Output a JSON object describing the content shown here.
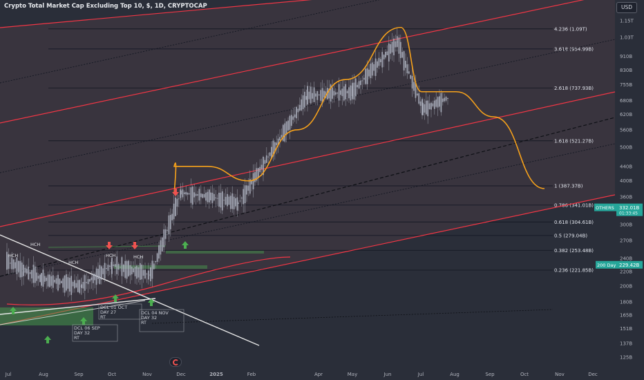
{
  "header": {
    "title": "Crypto Total Market Cap Excluding Top 10, $, 1D, CRYPTOCAP",
    "currency_button": "USD"
  },
  "colors": {
    "background": "#2a2e39",
    "pane_shade": "#463a44",
    "fib_line": "#131722",
    "channel_red": "#f23645",
    "dashed_line": "#131722",
    "projection": "#f7a21b",
    "candles": "#aeb3bf",
    "support_green": "#4caf50",
    "trend_white": "#e8e8e8",
    "signal_up": "#4caf50",
    "signal_down": "#ef5350",
    "others_badge": "#26a69a",
    "ma_badge": "#26a69a"
  },
  "chart_data": {
    "type": "line",
    "title": "Crypto Total Market Cap Excluding Top 10, $, 1D, CRYPTOCAP",
    "y_scale": "log",
    "ylim": [
      120,
      1250
    ],
    "y_ticks": [
      "1.15T",
      "1.03T",
      "910B",
      "830B",
      "755B",
      "680B",
      "620B",
      "560B",
      "500B",
      "440B",
      "400B",
      "360B",
      "330B",
      "300B",
      "270B",
      "240B",
      "220B",
      "200B",
      "180B",
      "165B",
      "151B",
      "137B",
      "125B"
    ],
    "x_ticks": [
      "Jul",
      "Aug",
      "Sep",
      "Oct",
      "Nov",
      "Dec",
      "2025",
      "Feb",
      "Apr",
      "May",
      "Jun",
      "Jul",
      "Aug",
      "Sep",
      "Oct",
      "Nov",
      "Dec"
    ],
    "fib_levels": [
      {
        "label": "4.236 (1.09T)",
        "value": 1090
      },
      {
        "label": "3.618 (954.99B)",
        "value": 955
      },
      {
        "label": "2.618 (737.93B)",
        "value": 738
      },
      {
        "label": "1.618 (521.27B)",
        "value": 521
      },
      {
        "label": "1 (387.37B)",
        "value": 387
      },
      {
        "label": "0.786 (341.01B)",
        "value": 341
      },
      {
        "label": "0.618 (304.61B)",
        "value": 305
      },
      {
        "label": "0.5 (279.04B)",
        "value": 279
      },
      {
        "label": "0.382 (253.48B)",
        "value": 253
      },
      {
        "label": "0.236 (221.85B)",
        "value": 222
      }
    ],
    "badges": [
      {
        "name": "OTHERS",
        "value": "332.01B",
        "sub": "01:33:45"
      },
      {
        "name": "200 Day",
        "value": "229.42B"
      }
    ],
    "series": [
      {
        "role": "price",
        "x": [
          "Jul",
          "Aug",
          "Sep",
          "Oct",
          "Nov",
          "Dec",
          "2025",
          "Feb",
          "Apr",
          "May",
          "Jun",
          "Jul",
          "Aug"
        ],
        "values": [
          235,
          210,
          200,
          230,
          215,
          370,
          360,
          345,
          700,
          720,
          1000,
          640,
          690
        ]
      },
      {
        "role": "projection",
        "x": [
          "Dec",
          "2025",
          "Feb",
          "Apr",
          "May",
          "Jun",
          "Jul",
          "Aug",
          "Sep",
          "Oct"
        ],
        "values": [
          440,
          440,
          400,
          560,
          780,
          1100,
          720,
          720,
          610,
          380
        ]
      }
    ],
    "annotations": {
      "hch_labels": [
        "HCH",
        "HCH",
        "HCH",
        "HCH",
        "HCH"
      ],
      "cycle_boxes": [
        {
          "title": "DCL 06 SEP",
          "day": "DAY 32",
          "tag": "RT"
        },
        {
          "title": "DCL 01 OCT",
          "day": "DAY 27",
          "tag": "RT"
        },
        {
          "title": "DCL 04 NOV",
          "day": "DAY 32",
          "tag": "RT"
        }
      ]
    },
    "grid": false,
    "legend": "none"
  }
}
